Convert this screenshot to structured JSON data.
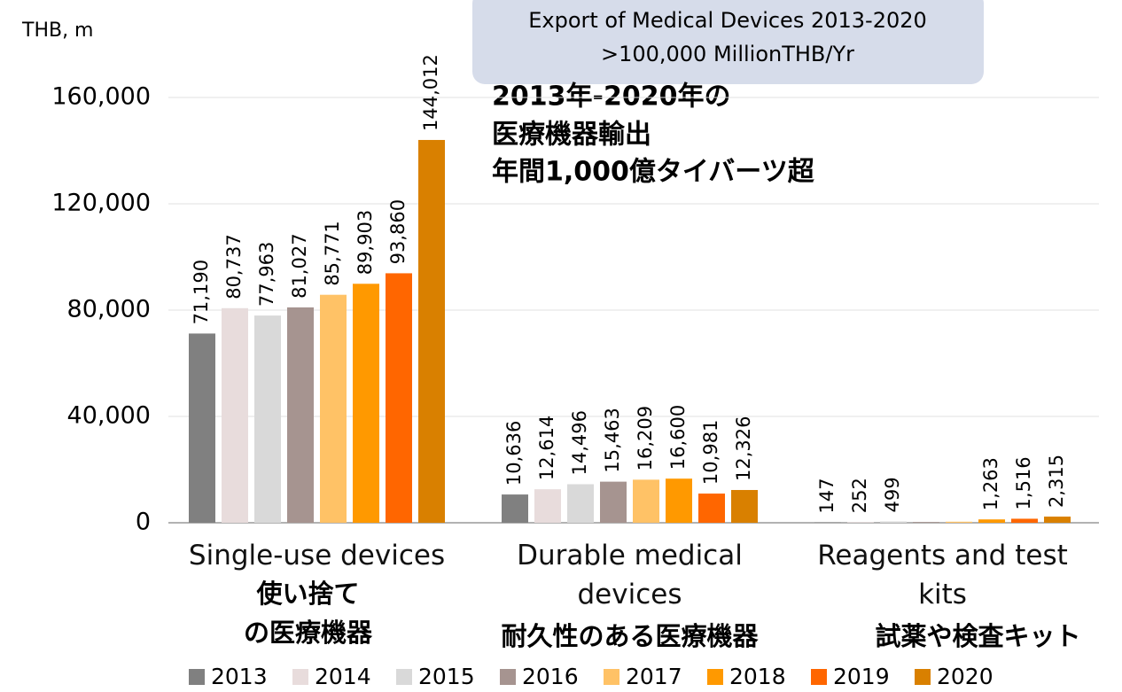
{
  "chart_data": {
    "type": "bar",
    "title_lines": [
      "Export of Medical Devices 2013-2020",
      ">100,000 MillionTHB/Yr"
    ],
    "y_label": "THB, m",
    "annotation_lines": [
      "2013年-2020年の",
      "医療機器輸出",
      "年間1,000億タイバーツ超"
    ],
    "categories": [
      "Single-use devices",
      "Durable medical devices",
      "Reagents and test kits"
    ],
    "category_sublabels": [
      [
        "使い捨て",
        "の医療機器"
      ],
      [
        "耐久性のある医療機器"
      ],
      [
        "試薬や検査キット"
      ]
    ],
    "series": [
      {
        "name": "2013",
        "color": "#808080",
        "values": [
          71190,
          10636,
          147
        ],
        "value_labels": [
          "71,190",
          "10,636",
          "147"
        ]
      },
      {
        "name": "2014",
        "color": "#e8dcdc",
        "values": [
          80737,
          12614,
          252
        ],
        "value_labels": [
          "80,737",
          "12,614",
          "252"
        ]
      },
      {
        "name": "2015",
        "color": "#d9d9d9",
        "values": [
          77963,
          14496,
          499
        ],
        "value_labels": [
          "77,963",
          "14,496",
          "499"
        ]
      },
      {
        "name": "2016",
        "color": "#a69490",
        "values": [
          81027,
          15463,
          300
        ],
        "value_labels": [
          "81,027",
          "15,463",
          null
        ]
      },
      {
        "name": "2017",
        "color": "#ffc266",
        "values": [
          85771,
          16209,
          400
        ],
        "value_labels": [
          "85,771",
          "16,209",
          null
        ]
      },
      {
        "name": "2018",
        "color": "#ff9900",
        "values": [
          89903,
          16600,
          1263
        ],
        "value_labels": [
          "89,903",
          "16,600",
          "1,263"
        ]
      },
      {
        "name": "2019",
        "color": "#ff6600",
        "values": [
          93860,
          10981,
          1516
        ],
        "value_labels": [
          "93,860",
          "10,981",
          "1,516"
        ]
      },
      {
        "name": "2020",
        "color": "#d98000",
        "values": [
          144012,
          12326,
          2315
        ],
        "value_labels": [
          "144,012",
          "12,326",
          "2,315"
        ]
      }
    ],
    "ylim": [
      0,
      160000
    ],
    "yticks": [
      0,
      {
        "value": 40000,
        "label": "40,000"
      },
      {
        "value": 80000,
        "label": "80,000"
      },
      {
        "value": 120000,
        "label": "120,000"
      },
      {
        "value": 160000,
        "label": "160,000"
      }
    ],
    "grid": true
  }
}
